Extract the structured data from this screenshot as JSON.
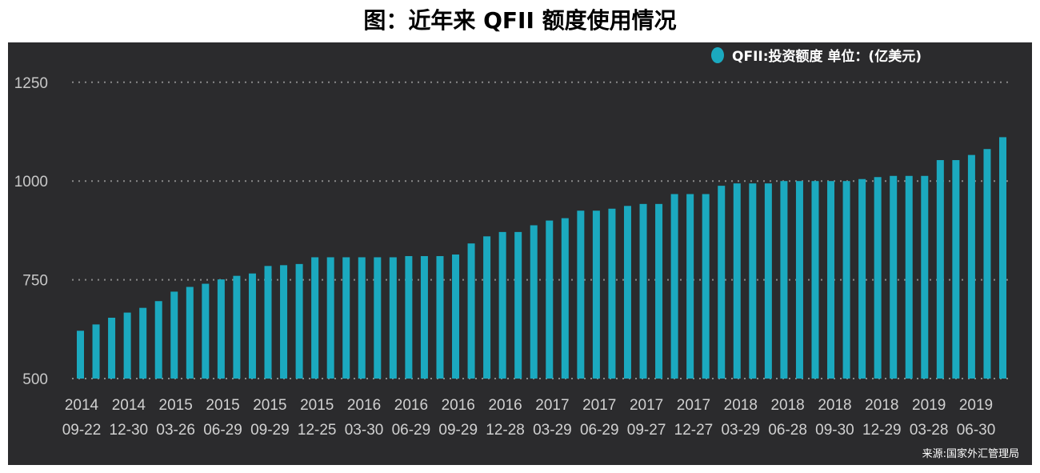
{
  "title": "图：近年来 QFII 额度使用情况",
  "source": "来源:国家外汇管理局",
  "colors": {
    "bar": "#1ba9bf",
    "background": "#2b2b2d",
    "grid": "#8a8a8a"
  },
  "chart_data": {
    "type": "bar",
    "legend": {
      "label": "QFII:投资额度 单位：(亿美元)",
      "position": "top-right"
    },
    "ylim": [
      500,
      1300
    ],
    "yticks": [
      500,
      750,
      1000,
      1250
    ],
    "grid": true,
    "xtick_labels": [
      {
        "year": "2014",
        "date": "09-22"
      },
      {
        "year": "2014",
        "date": "12-30"
      },
      {
        "year": "2015",
        "date": "03-26"
      },
      {
        "year": "2015",
        "date": "06-29"
      },
      {
        "year": "2015",
        "date": "09-29"
      },
      {
        "year": "2015",
        "date": "12-25"
      },
      {
        "year": "2016",
        "date": "03-30"
      },
      {
        "year": "2016",
        "date": "06-29"
      },
      {
        "year": "2016",
        "date": "09-29"
      },
      {
        "year": "2016",
        "date": "12-28"
      },
      {
        "year": "2017",
        "date": "03-29"
      },
      {
        "year": "2017",
        "date": "06-29"
      },
      {
        "year": "2017",
        "date": "09-27"
      },
      {
        "year": "2017",
        "date": "12-27"
      },
      {
        "year": "2018",
        "date": "03-29"
      },
      {
        "year": "2018",
        "date": "06-28"
      },
      {
        "year": "2018",
        "date": "09-30"
      },
      {
        "year": "2018",
        "date": "12-29"
      },
      {
        "year": "2019",
        "date": "03-28"
      },
      {
        "year": "2019",
        "date": "06-30"
      }
    ],
    "values": [
      621,
      637,
      654,
      667,
      679,
      696,
      720,
      732,
      740,
      751,
      760,
      766,
      785,
      787,
      790,
      807,
      807,
      807,
      807,
      807,
      807,
      810,
      810,
      810,
      814,
      842,
      860,
      871,
      871,
      888,
      900,
      906,
      925,
      925,
      930,
      937,
      942,
      942,
      967,
      967,
      967,
      988,
      994,
      994,
      994,
      1000,
      1000,
      1000,
      1000,
      1000,
      1005,
      1010,
      1013,
      1013,
      1013,
      1053,
      1053,
      1066,
      1081,
      1111
    ]
  }
}
